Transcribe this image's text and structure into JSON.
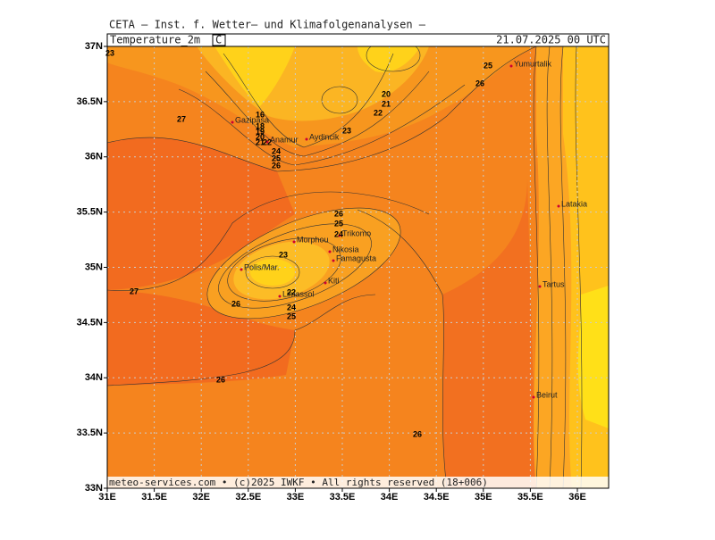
{
  "header": "CETA — Inst. f. Wetter— und Klimafolgenanalysen —",
  "panel": {
    "title": "Temperature_2m",
    "unit": "C",
    "date": "21.07.2025 00 UTC"
  },
  "footer": "meteo-services.com • (c)2025 IWKF • All rights reserved (18+006)",
  "lon_ticks": [
    {
      "value": 31,
      "label": "31E"
    },
    {
      "value": 31.5,
      "label": "31.5E"
    },
    {
      "value": 32,
      "label": "32E"
    },
    {
      "value": 32.5,
      "label": "32.5E"
    },
    {
      "value": 33,
      "label": "33E"
    },
    {
      "value": 33.5,
      "label": "33.5E"
    },
    {
      "value": 34,
      "label": "34E"
    },
    {
      "value": 34.5,
      "label": "34.5E"
    },
    {
      "value": 35,
      "label": "35E"
    },
    {
      "value": 35.5,
      "label": "35.5E"
    },
    {
      "value": 36,
      "label": "36E"
    }
  ],
  "lat_ticks": [
    {
      "value": 37,
      "label": "37N"
    },
    {
      "value": 36.5,
      "label": "36.5N"
    },
    {
      "value": 36,
      "label": "36N"
    },
    {
      "value": 35.5,
      "label": "35.5N"
    },
    {
      "value": 35,
      "label": "35N"
    },
    {
      "value": 34.5,
      "label": "34.5N"
    },
    {
      "value": 34,
      "label": "34N"
    },
    {
      "value": 33.5,
      "label": "33.5N"
    },
    {
      "value": 33,
      "label": "33N"
    }
  ],
  "cities": [
    "Gazipasa",
    "Anamur",
    "Aydincik",
    "Yumurtalik",
    "Latakia",
    "Tartus",
    "Beirut",
    "Morphou",
    "Trikomo",
    "Nikosia",
    "Famagusta",
    "Polis/Mar.",
    "Kiti",
    "Limassol"
  ],
  "contour_labels": [
    "23",
    "27",
    "16",
    "18",
    "19",
    "20",
    "21",
    "22",
    "24",
    "25",
    "26",
    "20",
    "21",
    "22",
    "23",
    "25",
    "26",
    "26",
    "25",
    "24",
    "23",
    "27",
    "26",
    "22",
    "24",
    "25",
    "26",
    "26"
  ]
}
